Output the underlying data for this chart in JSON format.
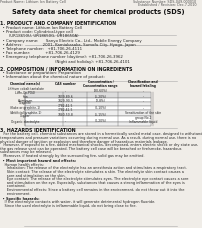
{
  "bg_color": "#f0ede8",
  "header_left": "Product Name: Lithium Ion Battery Cell",
  "header_right_line1": "Substance Number: SDS-049-000010",
  "header_right_line2": "Established / Revision: Dec.7.2010",
  "title": "Safety data sheet for chemical products (SDS)",
  "section1_title": "1. PRODUCT AND COMPANY IDENTIFICATION",
  "section1_lines": [
    "  • Product name: Lithium Ion Battery Cell",
    "  • Product code: Cylindrical-type cell",
    "       (UR18650U, UR18650G, UR18650A)",
    "  • Company name:      Sanyo Electric Co., Ltd., Mobile Energy Company",
    "  • Address:                2001, Kamiakasaka, Sumofu City, Hyogo, Japan",
    "  • Telephone number:   +81-706-26-4111",
    "  • Fax number:            +81-706-26-4129",
    "  • Emergency telephone number (daytime): +81-706-26-3962",
    "                                            (Night and holiday): +81-706-26-4101"
  ],
  "section2_title": "2. COMPOSITION / INFORMATION ON INGREDIENTS",
  "section2_sub1": "  • Substance or preparation: Preparation",
  "section2_sub2": "  • Information about the chemical nature of product:",
  "table_col_labels": [
    "Chemical name(s)",
    "CAS number",
    "Concentration /\nConcentration range",
    "Classification and\nhazard labeling"
  ],
  "table_rows": [
    [
      "Lithium cobalt tantalate\n(LiMn-Co-PO4)",
      "-",
      "(30-60%)",
      "-"
    ],
    [
      "Iron",
      "7439-89-6",
      "(5-20%)",
      "-"
    ],
    [
      "Aluminum",
      "7429-90-5",
      "(2-8%)",
      "-"
    ],
    [
      "Graphite\n(flake or graphite-1)\n(Artificial graphite-1)",
      "7782-42-5\n7782-42-5",
      "(0-10%)",
      "-"
    ],
    [
      "Copper",
      "7440-50-8",
      "(5-15%)",
      "Sensitization of the skin\ngroup No.2"
    ],
    [
      "Organic electrolyte",
      "-",
      "(0-20%)",
      "Inflammable liquid"
    ]
  ],
  "section3_title": "3. HAZARDS IDENTIFICATION",
  "section3_para1": "   For the battery cell, chemical substances are stored in a hermetically sealed metal case, designed to withstand\ntemperatures and pressure variations occurring during normal use. As a result, during normal use, there is no\nphysical danger of ignition or explosion and therefore danger of hazardous materials leakage.\n   However, if exposed to a fire, added mechanical shocks, decomposed, enters electric shock or dry state use,\nthe gas release vent can be operated. The battery cell case will be breached or fire/smoke, hazardous\nsubstances may be released.\n   Moreover, if heated strongly by the surrounding fire, solid gas may be emitted.",
  "section3_bullet1": "  • Most important hazard and effects:",
  "section3_health": "    Human health effects:\n      Inhalation: The release of the electrolyte has an anesthesia action and stimulates a respiratory tract.\n      Skin contact: The release of the electrolyte stimulates a skin. The electrolyte skin contact causes a\n      sore and stimulation on the skin.\n      Eye contact: The release of the electrolyte stimulates eyes. The electrolyte eye contact causes a sore\n      and stimulation on the eye. Especially, substances that causes a strong inflammation of the eyes is\n      contained.\n      Environmental effects: Since a battery cell remains in the environment, do not throw out it into the\n      environment.",
  "section3_bullet2": "  • Specific hazards:",
  "section3_specific": "    If the electrolyte contacts with water, it will generate detrimental hydrogen fluoride.\n    Since the used electrolyte is inflammable liquid, do not bring close to fire."
}
